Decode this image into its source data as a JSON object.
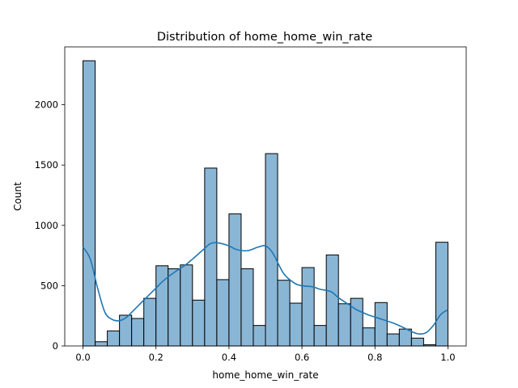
{
  "chart_data": {
    "type": "bar",
    "subtype": "histogram",
    "title": "Distribution of home_home_win_rate",
    "xlabel": "home_home_win_rate",
    "ylabel": "Count",
    "xlim": [
      -0.05,
      1.05
    ],
    "ylim": [
      0,
      2480
    ],
    "xticks": [
      0.0,
      0.2,
      0.4,
      0.6,
      0.8,
      1.0
    ],
    "xtick_labels": [
      "0.0",
      "0.2",
      "0.4",
      "0.6",
      "0.8",
      "1.0"
    ],
    "yticks": [
      0,
      500,
      1000,
      1500,
      2000
    ],
    "ytick_labels": [
      "0",
      "500",
      "1000",
      "1500",
      "2000"
    ],
    "grid": false,
    "bin_range": [
      0.0,
      1.0
    ],
    "bin_count": 30,
    "bar_color": "#8ab6d6",
    "bar_edge_color": "#000000",
    "kde_color": "#1f77b4",
    "counts": [
      2365,
      35,
      125,
      255,
      228,
      395,
      665,
      640,
      672,
      380,
      1475,
      550,
      1095,
      640,
      170,
      1595,
      545,
      355,
      650,
      170,
      755,
      350,
      395,
      150,
      360,
      100,
      140,
      65,
      10,
      860
    ],
    "kde": {
      "x": [
        0.0,
        0.02,
        0.04,
        0.06,
        0.08,
        0.1,
        0.12,
        0.15,
        0.18,
        0.2,
        0.22,
        0.25,
        0.28,
        0.3,
        0.33,
        0.35,
        0.37,
        0.4,
        0.42,
        0.45,
        0.48,
        0.5,
        0.52,
        0.55,
        0.58,
        0.6,
        0.63,
        0.65,
        0.68,
        0.7,
        0.73,
        0.75,
        0.78,
        0.8,
        0.83,
        0.85,
        0.88,
        0.9,
        0.92,
        0.94,
        0.96,
        0.98,
        1.0
      ],
      "y": [
        820,
        720,
        480,
        280,
        220,
        210,
        240,
        330,
        420,
        480,
        540,
        610,
        670,
        720,
        800,
        850,
        855,
        830,
        800,
        790,
        820,
        830,
        770,
        600,
        520,
        500,
        490,
        470,
        450,
        400,
        340,
        300,
        260,
        240,
        210,
        190,
        150,
        120,
        100,
        110,
        170,
        260,
        300
      ]
    }
  }
}
